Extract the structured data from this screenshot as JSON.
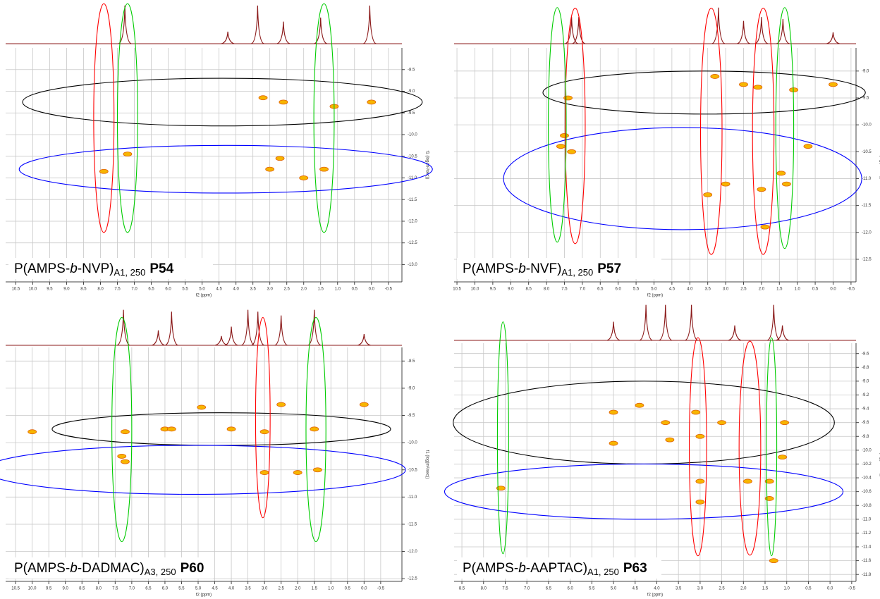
{
  "chart_data": [
    {
      "type": "scatter",
      "x_label": "f2 (ppm)",
      "y_label": "f1 (log(m²/sec))",
      "caption": {
        "pre": "P(AMPS-",
        "it": "b",
        "post": "-NVP)",
        "sub": "A1, 250",
        "id": "P54"
      },
      "xlim": [
        10.8,
        -0.9
      ],
      "xticks": [
        10.5,
        {
          "value": 10,
          "label": "10.0"
        },
        9.5,
        {
          "value": 9,
          "label": "9.0"
        },
        8.5,
        {
          "value": 8,
          "label": "8.0"
        },
        7.5,
        {
          "value": 7,
          "label": "7.0"
        },
        6.5,
        {
          "value": 6,
          "label": "6.0"
        },
        5.5,
        {
          "value": 5,
          "label": "5.0"
        },
        4.5,
        {
          "value": 4,
          "label": "4.0"
        },
        3.5,
        {
          "value": 3,
          "label": "3.0"
        },
        2.5,
        {
          "value": 2,
          "label": "2.0"
        },
        1.5,
        {
          "value": 1,
          "label": "1.0"
        },
        0.5,
        {
          "value": 0,
          "label": "0.0"
        },
        -0.5
      ],
      "ylim": [
        -8.0,
        -13.4
      ],
      "yticks": [
        -8.5,
        {
          "value": -9,
          "label": "-9.0"
        },
        -9.5,
        {
          "value": -10,
          "label": "-10.0"
        },
        -10.5,
        {
          "value": -11,
          "label": "-11.0"
        },
        -11.5,
        {
          "value": -12,
          "label": "-12.0"
        },
        -12.5,
        {
          "value": -13,
          "label": "-13.0"
        }
      ],
      "grid": true,
      "color": "#f7b500",
      "x": [
        3.2,
        2.6,
        0.0,
        1.1,
        7.2,
        7.9,
        3.0,
        1.4,
        2.7,
        2.0
      ],
      "values": [
        -9.15,
        -9.25,
        -9.25,
        -9.35,
        -10.45,
        -10.85,
        -10.8,
        -10.8,
        -10.55,
        -11.0
      ],
      "projection": {
        "color": "#8b1a1a",
        "x": [
          7.28,
          4.24,
          3.36,
          2.6,
          1.5,
          0.05
        ],
        "height": [
          0.95,
          0.3,
          0.95,
          0.55,
          0.65,
          0.95
        ]
      },
      "ellipses": [
        {
          "color": "#000000",
          "cx": 4.4,
          "cy": -9.25,
          "rx": 5.9,
          "ry": 0.55
        },
        {
          "color": "#0000ff",
          "cx": 4.3,
          "cy": -10.8,
          "rx": 6.1,
          "ry": 0.55
        },
        {
          "color": "#ff0000",
          "cx": 7.9,
          "cy": -9.62,
          "rx": 0.3,
          "ry": 2.64
        },
        {
          "color": "#00cc00",
          "cx": 7.2,
          "cy": -9.62,
          "rx": 0.3,
          "ry": 2.64
        },
        {
          "color": "#00cc00",
          "cx": 1.4,
          "cy": -9.62,
          "rx": 0.3,
          "ry": 2.64
        }
      ]
    },
    {
      "type": "scatter",
      "x_label": "f2 (ppm)",
      "y_label": "f1 (log(m²/sec))",
      "caption": {
        "pre": "P(AMPS-",
        "it": "b",
        "post": "-NVF)",
        "sub": "A1, 250",
        "id": "P57"
      },
      "xlim": [
        10.58,
        -0.64
      ],
      "xticks": [
        10.5,
        {
          "value": 10,
          "label": "10.0"
        },
        9.5,
        {
          "value": 9,
          "label": "9.0"
        },
        8.5,
        {
          "value": 8,
          "label": "8.0"
        },
        7.5,
        {
          "value": 7,
          "label": "7.0"
        },
        6.5,
        {
          "value": 6,
          "label": "6.0"
        },
        5.5,
        {
          "value": 5,
          "label": "5.0"
        },
        4.5,
        {
          "value": 4,
          "label": "4.0"
        },
        3.5,
        {
          "value": 3,
          "label": "3.0"
        },
        2.5,
        {
          "value": 2,
          "label": "2.0"
        },
        1.5,
        {
          "value": 1,
          "label": "1.0"
        },
        0.5,
        {
          "value": 0,
          "label": "0.0"
        },
        -0.5
      ],
      "ylim": [
        -8.57,
        -12.92
      ],
      "yticks": [
        {
          "value": -9,
          "label": "-9.0"
        },
        -9.5,
        {
          "value": -10,
          "label": "-10.0"
        },
        -10.5,
        {
          "value": -11,
          "label": "-11.0"
        },
        -11.5,
        {
          "value": -12,
          "label": "-12.0"
        },
        -12.5
      ],
      "grid": true,
      "color": "#f7b500",
      "x": [
        3.3,
        2.5,
        2.1,
        1.1,
        0.0,
        7.4,
        7.5,
        7.6,
        7.3,
        1.45,
        3.5,
        2.0,
        1.3,
        3.0,
        1.9,
        0.7
      ],
      "values": [
        -9.1,
        -9.25,
        -9.3,
        -9.35,
        -9.25,
        -9.5,
        -10.2,
        -10.4,
        -10.5,
        -10.9,
        -11.3,
        -11.2,
        -11.1,
        -11.1,
        -11.9,
        -10.4
      ],
      "projection": {
        "color": "#8b1a1a",
        "x": [
          7.3,
          7.1,
          3.2,
          2.5,
          2.0,
          1.4,
          0.0
        ],
        "height": [
          0.7,
          0.7,
          0.95,
          0.6,
          0.7,
          0.65,
          0.3
        ]
      },
      "ellipses": [
        {
          "color": "#000000",
          "cx": 3.6,
          "cy": -9.4,
          "rx": 4.5,
          "ry": 0.4
        },
        {
          "color": "#0000ff",
          "cx": 4.2,
          "cy": -11.0,
          "rx": 5.0,
          "ry": 0.95
        },
        {
          "color": "#ff0000",
          "cx": 7.2,
          "cy": -10.02,
          "rx": 0.28,
          "ry": 2.19
        },
        {
          "color": "#ff0000",
          "cx": 3.4,
          "cy": -10.12,
          "rx": 0.3,
          "ry": 2.29
        },
        {
          "color": "#ff0000",
          "cx": 1.95,
          "cy": -10.12,
          "rx": 0.3,
          "ry": 2.29
        },
        {
          "color": "#00cc00",
          "cx": 7.7,
          "cy": -10.0,
          "rx": 0.25,
          "ry": 2.18
        },
        {
          "color": "#00cc00",
          "cx": 1.35,
          "cy": -10.06,
          "rx": 0.25,
          "ry": 2.24
        }
      ]
    },
    {
      "type": "scatter",
      "x_label": "f2 (ppm)",
      "y_label": "f1 (log(m²/sec))",
      "caption": {
        "pre": "P(AMPS-",
        "it": "b",
        "post": "-DADMAC)",
        "sub": "A3, 250",
        "id": "P60"
      },
      "xlim": [
        10.8,
        -1.14
      ],
      "xticks": [
        10.5,
        {
          "value": 10,
          "label": "10.0"
        },
        9.5,
        {
          "value": 9,
          "label": "9.0"
        },
        8.5,
        {
          "value": 8,
          "label": "8.0"
        },
        7.5,
        {
          "value": 7,
          "label": "7.0"
        },
        6.5,
        {
          "value": 6,
          "label": "6.0"
        },
        5.5,
        {
          "value": 5,
          "label": "5.0"
        },
        4.5,
        {
          "value": 4,
          "label": "4.0"
        },
        3.5,
        {
          "value": 3,
          "label": "3.0"
        },
        2.5,
        {
          "value": 2,
          "label": "2.0"
        },
        1.5,
        {
          "value": 1,
          "label": "1.0"
        },
        0.5,
        {
          "value": 0,
          "label": "0.0"
        },
        -0.5
      ],
      "ylim": [
        -8.25,
        -12.55
      ],
      "yticks": [
        -8.5,
        {
          "value": -9,
          "label": "-9.0"
        },
        -9.5,
        {
          "value": -10,
          "label": "-10.0"
        },
        -10.5,
        {
          "value": -11,
          "label": "-11.0"
        },
        -11.5,
        {
          "value": -12,
          "label": "-12.0"
        },
        -12.5
      ],
      "grid": true,
      "color": "#f7b500",
      "x": [
        4.9,
        2.5,
        0.0,
        6.0,
        5.8,
        4.0,
        3.0,
        7.2,
        1.5,
        10.0,
        7.3,
        7.2,
        3.0,
        2.0,
        1.4
      ],
      "values": [
        -9.35,
        -9.3,
        -9.3,
        -9.75,
        -9.75,
        -9.75,
        -9.8,
        -9.8,
        -9.75,
        -9.8,
        -10.25,
        -10.35,
        -10.55,
        -10.55,
        -10.5
      ],
      "projection": {
        "color": "#8b1a1a",
        "x": [
          7.25,
          6.2,
          5.8,
          4.3,
          4.0,
          3.5,
          3.2,
          2.5,
          1.5,
          0.0
        ],
        "height": [
          0.95,
          0.4,
          0.9,
          0.25,
          0.5,
          0.95,
          0.9,
          0.8,
          0.95,
          0.3
        ]
      },
      "ellipses": [
        {
          "color": "#000000",
          "cx": 4.3,
          "cy": -9.75,
          "rx": 5.1,
          "ry": 0.3
        },
        {
          "color": "#0000ff",
          "cx": 5.1,
          "cy": -10.5,
          "rx": 6.35,
          "ry": 0.45
        },
        {
          "color": "#ff0000",
          "cx": 3.05,
          "cy": -9.54,
          "rx": 0.22,
          "ry": 1.84
        },
        {
          "color": "#00cc00",
          "cx": 7.3,
          "cy": -9.76,
          "rx": 0.3,
          "ry": 2.06
        },
        {
          "color": "#00cc00",
          "cx": 1.45,
          "cy": -9.76,
          "rx": 0.3,
          "ry": 2.06
        }
      ]
    },
    {
      "type": "scatter",
      "x_label": "f2 (ppm)",
      "y_label": "f1 (log(m²/sec))",
      "caption": {
        "pre": "P(AMPS-",
        "it": "b",
        "post": "-AAPTAC)",
        "sub": "A1, 250",
        "id": "P63"
      },
      "xlim": [
        8.68,
        -0.6
      ],
      "xticks": [
        8.5,
        {
          "value": 8,
          "label": "8.0"
        },
        7.5,
        {
          "value": 7,
          "label": "7.0"
        },
        6.5,
        {
          "value": 6,
          "label": "6.0"
        },
        5.5,
        {
          "value": 5,
          "label": "5.0"
        },
        4.5,
        {
          "value": 4,
          "label": "4.0"
        },
        3.5,
        {
          "value": 3,
          "label": "3.0"
        },
        2.5,
        {
          "value": 2,
          "label": "2.0"
        },
        1.5,
        {
          "value": 1,
          "label": "1.0"
        },
        0.5,
        {
          "value": 0,
          "label": "0.0"
        },
        -0.5
      ],
      "ylim": [
        -8.45,
        -11.9
      ],
      "yticks": [
        -8.6,
        -8.8,
        {
          "value": -9,
          "label": "-9.0"
        },
        -9.2,
        -9.4,
        -9.6,
        -9.8,
        {
          "value": -10,
          "label": "-10.0"
        },
        -10.2,
        -10.4,
        -10.6,
        -10.8,
        {
          "value": -11,
          "label": "-11.0"
        },
        -11.2,
        -11.4,
        -11.6,
        -11.8
      ],
      "grid": true,
      "color": "#f7b500",
      "x": [
        4.4,
        3.8,
        2.5,
        1.05,
        5.0,
        3.1,
        3.7,
        3.0,
        5.0,
        1.1,
        1.9,
        1.4,
        1.4,
        3.0,
        3.0,
        7.6,
        1.3
      ],
      "values": [
        -9.35,
        -9.6,
        -9.6,
        -9.6,
        -9.45,
        -9.45,
        -9.85,
        -9.8,
        -9.9,
        -10.1,
        -10.45,
        -10.45,
        -10.7,
        -10.75,
        -10.45,
        -10.55,
        -11.6
      ],
      "projection": {
        "color": "#8b1a1a",
        "x": [
          5.0,
          4.25,
          3.8,
          3.2,
          2.2,
          1.3,
          1.1
        ],
        "height": [
          0.5,
          0.95,
          0.95,
          0.95,
          0.4,
          0.95,
          0.4
        ]
      },
      "ellipses": [
        {
          "color": "#000000",
          "cx": 4.3,
          "cy": -9.6,
          "rx": 4.4,
          "ry": 0.6
        },
        {
          "color": "#0000ff",
          "cx": 4.3,
          "cy": -10.6,
          "rx": 4.6,
          "ry": 0.4
        },
        {
          "color": "#00cc00",
          "cx": 7.55,
          "cy": -9.82,
          "rx": 0.13,
          "ry": 1.68
        },
        {
          "color": "#ff0000",
          "cx": 3.05,
          "cy": -9.95,
          "rx": 0.2,
          "ry": 1.58
        },
        {
          "color": "#ff0000",
          "cx": 1.85,
          "cy": -9.97,
          "rx": 0.25,
          "ry": 1.55
        },
        {
          "color": "#00cc00",
          "cx": 1.35,
          "cy": -9.95,
          "rx": 0.12,
          "ry": 1.58
        }
      ]
    }
  ]
}
